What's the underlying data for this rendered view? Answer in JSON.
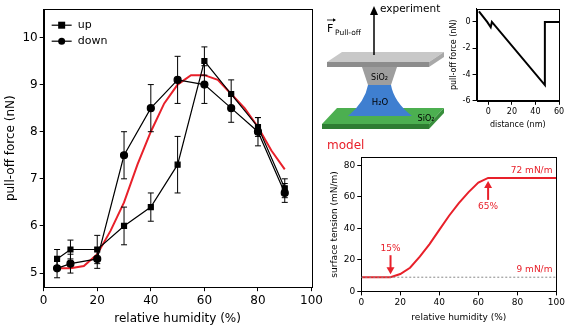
{
  "chart_data": [
    {
      "type": "line",
      "x_label": "relative humidity (%)",
      "y_label": "pull-off force (nN)",
      "xlim": [
        0,
        100
      ],
      "xticks": [
        0,
        20,
        40,
        60,
        80,
        100
      ],
      "ylim": [
        4.7,
        10.6
      ],
      "yticks": [
        5,
        6,
        7,
        8,
        9,
        10
      ],
      "grid": false,
      "legend": "top-left",
      "series": [
        {
          "name": "up",
          "color": "#000000",
          "marker": "square",
          "line_style": "solid",
          "x": [
            5,
            10,
            20,
            30,
            40,
            50,
            60,
            70,
            80,
            90
          ],
          "values": [
            5.3,
            5.5,
            5.5,
            6.0,
            6.4,
            7.3,
            9.5,
            8.8,
            8.1,
            6.8
          ],
          "errors": [
            0.2,
            0.2,
            0.3,
            0.4,
            0.3,
            0.6,
            0.3,
            0.3,
            0.2,
            0.2
          ]
        },
        {
          "name": "down",
          "color": "#000000",
          "marker": "circle",
          "line_style": "solid",
          "x": [
            5,
            10,
            20,
            30,
            40,
            50,
            60,
            70,
            80,
            90
          ],
          "values": [
            5.1,
            5.2,
            5.3,
            7.5,
            8.5,
            9.1,
            9.0,
            8.5,
            8.0,
            6.7
          ],
          "errors": [
            0.2,
            0.2,
            0.2,
            0.5,
            0.5,
            0.5,
            0.4,
            0.3,
            0.3,
            0.2
          ]
        },
        {
          "color": "#e8202a",
          "marker": "none",
          "line_style": "solid",
          "x": [
            5,
            10,
            15,
            20,
            25,
            30,
            35,
            40,
            45,
            50,
            55,
            60,
            65,
            70,
            75,
            80,
            85,
            90
          ],
          "values": [
            5.1,
            5.1,
            5.15,
            5.4,
            5.9,
            6.5,
            7.3,
            8.0,
            8.6,
            9.0,
            9.2,
            9.2,
            9.1,
            8.8,
            8.5,
            8.1,
            7.6,
            7.2
          ]
        }
      ]
    },
    {
      "type": "line",
      "x_label": "distance (nm)",
      "y_label": "pull-off force (nN)",
      "xlim": [
        -10,
        60
      ],
      "xticks": [
        0,
        20,
        40,
        60
      ],
      "ylim": [
        -6,
        1
      ],
      "yticks": [
        -6,
        -4,
        -2,
        0
      ],
      "grid": false,
      "series": [
        {
          "color": "#000000",
          "marker": "none",
          "line_style": "solid",
          "x": [
            -8,
            -1,
            2,
            3,
            48,
            48,
            60
          ],
          "values": [
            0.8,
            0,
            -0.4,
            0,
            -4.8,
            0,
            0
          ]
        }
      ]
    },
    {
      "type": "line",
      "title": "model",
      "color": "#e8202a",
      "x_label": "relative humidity (%)",
      "y_label": "surface tension (mN/m)",
      "xlim": [
        0,
        100
      ],
      "xticks": [
        0,
        20,
        40,
        60,
        80,
        100
      ],
      "ylim": [
        0,
        85
      ],
      "yticks": [
        0,
        20,
        40,
        60,
        80
      ],
      "grid": false,
      "series": [
        {
          "color": "#e8202a",
          "marker": "none",
          "line_style": "solid",
          "x": [
            0,
            10,
            15,
            20,
            25,
            30,
            35,
            40,
            45,
            50,
            55,
            60,
            65,
            70,
            80,
            90,
            100
          ],
          "values": [
            9,
            9,
            9,
            11,
            15,
            22,
            30,
            39,
            48,
            56,
            63,
            69,
            72,
            72,
            72,
            72,
            72
          ]
        }
      ],
      "levels": [
        {
          "value": 72,
          "label": "72 mN/m"
        },
        {
          "value": 9,
          "label": "9 mN/m",
          "line_style": "dotted"
        }
      ],
      "annotations": [
        {
          "text": "15%",
          "x": 15,
          "y": 9
        },
        {
          "text": "65%",
          "x": 65,
          "y": 72
        }
      ]
    }
  ],
  "diagram": {
    "title": "experiment",
    "force": {
      "symbol": "F",
      "subscript": "Pull-off"
    },
    "tip_label": "SiO₂",
    "liquid_label": "H₂O",
    "substrate_label": "SiO₂"
  }
}
